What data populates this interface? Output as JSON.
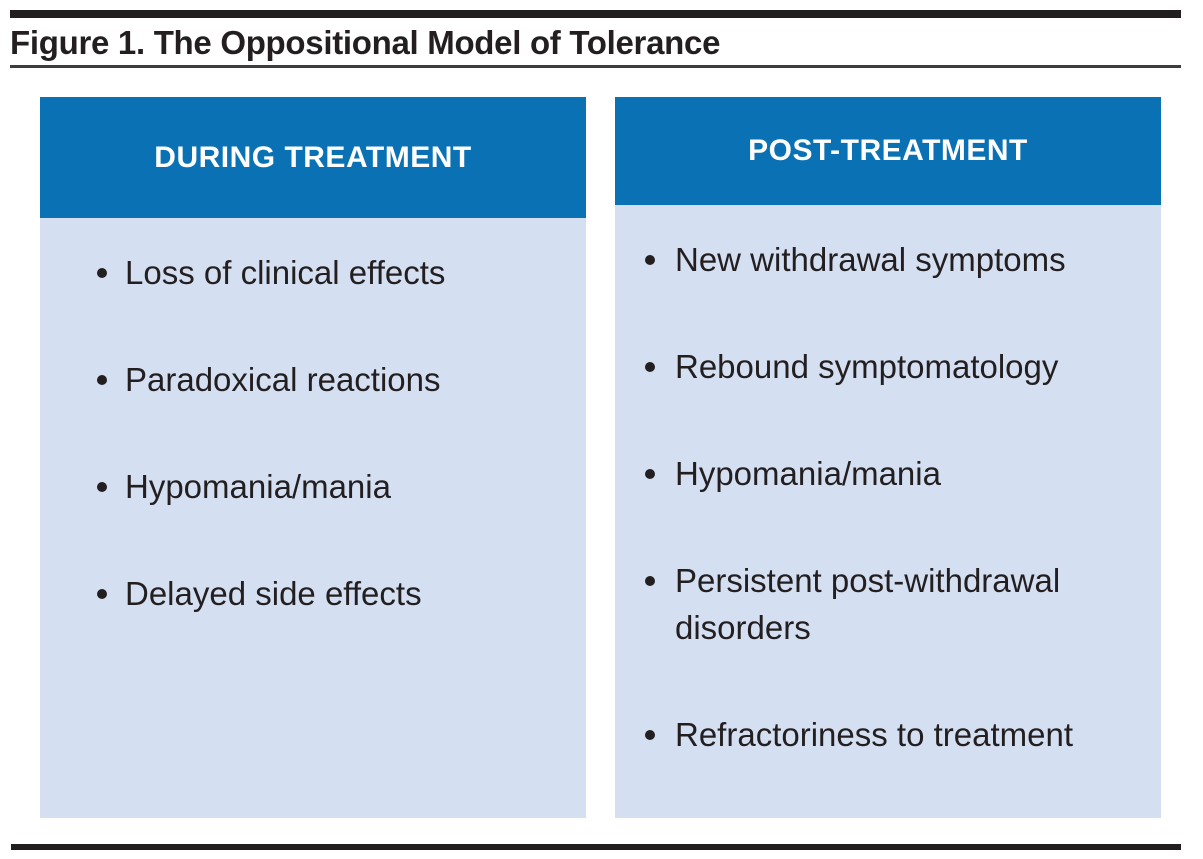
{
  "figure": {
    "title": "Figure 1. The Oppositional Model of Tolerance",
    "columns": [
      {
        "header": "DURING TREATMENT",
        "items": [
          "Loss of clinical effects",
          "Paradoxical reactions",
          "Hypomania/mania",
          "Delayed side effects"
        ]
      },
      {
        "header": "POST-TREATMENT",
        "items": [
          "New withdrawal symptoms",
          "Rebound symptomatology",
          "Hypomania/mania",
          "Persistent post-withdrawal disorders",
          "Refractoriness to treatment"
        ]
      }
    ],
    "colors": {
      "header_bg": "#0a72b4",
      "body_bg": "#d4dff1",
      "text": "#231f20",
      "rule": "#221e1f",
      "header_text": "#ffffff"
    }
  }
}
